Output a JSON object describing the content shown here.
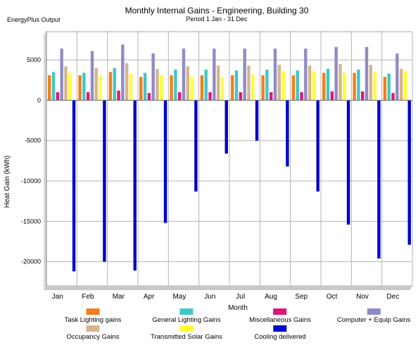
{
  "header": {
    "source_label": "EnergyPlus Output",
    "title": "Monthly Internal Gains - Engineering, Building 30",
    "subtitle": "Period 1 Jan - 31 Dec"
  },
  "chart_data": {
    "type": "bar",
    "title": "Monthly Internal Gains - Engineering, Building 30",
    "subtitle": "Period 1 Jan - 31 Dec",
    "xlabel": "Month",
    "ylabel": "Heat Gain (kWh)",
    "ylim": [
      -23000,
      8500
    ],
    "yticks": [
      5000,
      0,
      -5000,
      -10000,
      -15000,
      -20000
    ],
    "ytick_labels": [
      "5000",
      "0",
      "-5000",
      "-10000",
      "-15000",
      "-20000"
    ],
    "grid": true,
    "legend_position": "bottom",
    "categories": [
      "Jan",
      "Feb",
      "Mar",
      "Apr",
      "May",
      "Jun",
      "Jul",
      "Aug",
      "Sep",
      "Oct",
      "Nov",
      "Dec"
    ],
    "series": [
      {
        "name": "Task Lighting gains",
        "color": "#f07f1c",
        "values": [
          3100,
          3100,
          3500,
          2900,
          3100,
          3100,
          3100,
          3100,
          3100,
          3400,
          3400,
          2900
        ]
      },
      {
        "name": "General Lighting Gains",
        "color": "#40c8c4",
        "values": [
          3500,
          3400,
          4000,
          3400,
          3800,
          3800,
          3700,
          3800,
          3700,
          3900,
          3800,
          3300
        ]
      },
      {
        "name": "Miscellaneous Gains",
        "color": "#e0157a",
        "values": [
          1000,
          1000,
          1200,
          900,
          1000,
          1000,
          1000,
          1000,
          1000,
          1100,
          1100,
          900
        ]
      },
      {
        "name": "Computer + Equip Gains",
        "color": "#8e8cc4",
        "values": [
          6400,
          6100,
          6900,
          5800,
          6400,
          6400,
          6400,
          6400,
          6400,
          6600,
          6600,
          5800
        ]
      },
      {
        "name": "Occupancy Gains",
        "color": "#d6b48e",
        "values": [
          4200,
          4000,
          4600,
          3900,
          4200,
          4300,
          4300,
          4400,
          4300,
          4500,
          4400,
          3900
        ]
      },
      {
        "name": "Transmitted Solar Gains",
        "color": "#ffff33",
        "values": [
          3400,
          3100,
          3300,
          3100,
          2900,
          2900,
          3200,
          3600,
          3600,
          3400,
          3500,
          3600
        ]
      },
      {
        "name": "Cooling delivered",
        "color": "#0000c8",
        "values": [
          -21200,
          -20000,
          -21100,
          -15200,
          -11300,
          -6600,
          -5000,
          -8200,
          -11300,
          -15400,
          -19600,
          -17900
        ]
      }
    ]
  }
}
